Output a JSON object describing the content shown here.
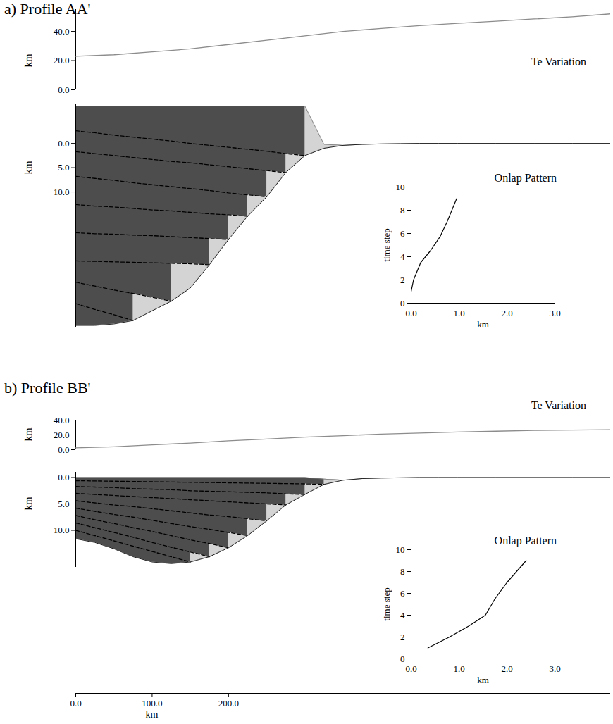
{
  "chart_data": [
    {
      "title": "a) Profile AA'",
      "te": {
        "type": "line",
        "title": "Te Variation",
        "ylabel": "km",
        "xlim": [
          0,
          700
        ],
        "ylim": [
          0,
          55
        ],
        "yticks": [
          {
            "value": 0,
            "label": "0.0"
          },
          {
            "value": 20,
            "label": "20.0"
          },
          {
            "value": 40,
            "label": "40.0"
          }
        ],
        "tick_labels": "y",
        "color": "#8c8c8c",
        "x": [
          0,
          50,
          100,
          150,
          200,
          250,
          300,
          350,
          400,
          450,
          500,
          550,
          600,
          650,
          700
        ],
        "values": [
          23,
          24,
          26,
          28,
          31,
          34,
          37,
          40,
          42,
          44,
          45.5,
          47,
          48.5,
          50,
          52
        ]
      },
      "section": {
        "type": "area",
        "ylabel": "km",
        "xlim": [
          0,
          700
        ],
        "ylim": [
          38,
          -8
        ],
        "yticks": [
          {
            "value": 0,
            "label": "0.0"
          },
          {
            "value": 5,
            "label": "5.0"
          },
          {
            "value": 10,
            "label": "10.0"
          }
        ],
        "tick_labels": "y",
        "color": "#4d4d4d",
        "x": [
          0,
          25,
          50,
          75,
          100,
          125,
          150,
          175,
          200,
          225,
          250,
          275,
          300,
          325,
          350,
          375,
          400,
          425,
          450,
          475,
          500,
          550,
          600,
          650,
          700
        ],
        "basement": [
          37.5,
          37.5,
          37.2,
          36.5,
          34.5,
          32.5,
          29.8,
          25,
          19.8,
          15,
          11,
          6,
          2.5,
          1,
          0.4,
          0.2,
          0.1,
          0.05,
          0,
          0,
          0,
          0,
          0,
          0,
          0
        ],
        "surface": [
          -7.7,
          -7.7,
          -7.7,
          -7.7,
          -7.7,
          -7.7,
          -7.7,
          -7.7,
          -7.7,
          -7.7,
          -7.7,
          -7.7,
          -7.7,
          0.2,
          0.4,
          0.2,
          0.1,
          0.05,
          0,
          0,
          0,
          0,
          0,
          0,
          0
        ],
        "horizons": {
          "line_style": "dashed",
          "color": "#000000",
          "depths": [
            [
              33,
              34.2,
              35.3,
              36.5,
              34.5,
              32.5,
              29.8,
              25,
              19.8,
              15,
              11,
              6,
              2.5,
              1,
              0.4,
              0.2,
              0.1,
              0.05,
              0,
              0,
              0,
              0,
              0,
              0,
              0
            ],
            [
              28.6,
              29.4,
              30.2,
              30.9,
              31.7,
              32.5,
              29.8,
              25,
              19.8,
              15,
              11,
              6,
              2.5,
              1,
              0.4,
              0.2,
              0.1,
              0.05,
              0,
              0,
              0,
              0,
              0,
              0,
              0
            ],
            [
              24.2,
              24.3,
              24.4,
              24.5,
              24.6,
              24.7,
              24.8,
              25,
              19.8,
              15,
              11,
              6,
              2.5,
              1,
              0.4,
              0.2,
              0.1,
              0.05,
              0,
              0,
              0,
              0,
              0,
              0,
              0
            ],
            [
              18.4,
              18.6,
              18.7,
              18.9,
              19,
              19.2,
              19.4,
              19.6,
              19.8,
              15,
              11,
              6,
              2.5,
              1,
              0.4,
              0.2,
              0.1,
              0.05,
              0,
              0,
              0,
              0,
              0,
              0,
              0
            ],
            [
              12.6,
              12.9,
              13.1,
              13.4,
              13.7,
              13.9,
              14.2,
              14.5,
              14.7,
              15,
              11,
              6,
              2.5,
              1,
              0.4,
              0.2,
              0.1,
              0.05,
              0,
              0,
              0,
              0,
              0,
              0,
              0
            ],
            [
              6.8,
              7.2,
              7.6,
              8.1,
              8.5,
              8.9,
              9.3,
              9.7,
              10.2,
              10.6,
              11,
              6,
              2.5,
              1,
              0.4,
              0.2,
              0.1,
              0.05,
              0,
              0,
              0,
              0,
              0,
              0,
              0
            ],
            [
              1.7,
              2.1,
              2.5,
              2.9,
              3.3,
              3.7,
              4,
              4.4,
              4.8,
              5.2,
              5.6,
              6,
              2.5,
              1,
              0.4,
              0.2,
              0.1,
              0.05,
              0,
              0,
              0,
              0,
              0,
              0,
              0
            ],
            [
              -2.6,
              -2.2,
              -1.7,
              -1.3,
              -0.9,
              -0.5,
              0,
              0.4,
              0.8,
              1.2,
              1.6,
              2.1,
              2.5,
              1,
              0.4,
              0.2,
              0.1,
              0.05,
              0,
              0,
              0,
              0,
              0,
              0,
              0
            ]
          ]
        }
      },
      "onlap": {
        "type": "line",
        "title": "Onlap Pattern",
        "xlabel": "km",
        "ylabel": "time step",
        "xlim": [
          0,
          3
        ],
        "ylim": [
          0,
          10
        ],
        "xticks": [
          {
            "value": 0,
            "label": "0.0"
          },
          {
            "value": 1,
            "label": "1.0"
          },
          {
            "value": 2,
            "label": "2.0"
          },
          {
            "value": 3,
            "label": "3.0"
          }
        ],
        "yticks": [
          0,
          2,
          4,
          6,
          8,
          10
        ],
        "color": "#000000",
        "x": [
          0,
          0.05,
          0.1,
          0.2,
          0.4,
          0.6,
          0.75,
          0.95
        ],
        "values": [
          1,
          2,
          2.5,
          3.5,
          4.5,
          5.7,
          7,
          9
        ]
      }
    },
    {
      "title": "b) Profile BB'",
      "te": {
        "type": "line",
        "title": "Te Variation",
        "ylabel": "km",
        "xlim": [
          0,
          700
        ],
        "ylim": [
          0,
          40
        ],
        "yticks": [
          {
            "value": 0,
            "label": "0.0"
          },
          {
            "value": 20,
            "label": "20.0"
          },
          {
            "value": 40,
            "label": "40.0"
          }
        ],
        "tick_labels": "y",
        "color": "#8c8c8c",
        "x": [
          0,
          50,
          100,
          150,
          200,
          250,
          300,
          350,
          400,
          450,
          500,
          550,
          600,
          650,
          700
        ],
        "values": [
          2.5,
          4,
          6.5,
          9,
          12,
          14.5,
          17,
          19,
          21,
          22.5,
          24,
          25,
          26,
          26.5,
          27
        ]
      },
      "section": {
        "type": "area",
        "ylabel": "km",
        "xlabel": "km",
        "xlim": [
          0,
          700
        ],
        "ylim": [
          17,
          -1
        ],
        "xticks": [
          {
            "value": 0,
            "label": "0.0"
          },
          {
            "value": 100,
            "label": "100.0"
          },
          {
            "value": 200,
            "label": "200.0"
          }
        ],
        "yticks": [
          {
            "value": 0,
            "label": "0.0"
          },
          {
            "value": 5,
            "label": "5.0"
          },
          {
            "value": 10,
            "label": "10.0"
          }
        ],
        "tick_labels": true,
        "color": "#4d4d4d",
        "x": [
          0,
          25,
          50,
          75,
          100,
          125,
          150,
          175,
          200,
          225,
          250,
          275,
          300,
          325,
          350,
          375,
          400,
          425,
          450,
          475,
          500,
          550,
          600,
          650,
          700
        ],
        "basement": [
          11.6,
          12.3,
          13.5,
          15,
          16,
          16.3,
          16,
          15,
          13.3,
          11,
          8.2,
          5.2,
          3.2,
          1.3,
          0.5,
          0.2,
          0.1,
          0.05,
          0,
          0,
          0,
          0,
          0,
          0,
          0
        ],
        "surface": [
          0,
          0,
          0,
          0,
          0,
          0,
          0,
          0,
          0,
          0,
          0,
          0,
          0,
          0.3,
          0.5,
          0.2,
          0.1,
          0.05,
          0,
          0,
          0,
          0,
          0,
          0,
          0
        ],
        "horizons": {
          "line_style": "dashed",
          "color": "#000000",
          "depths": [
            [
              10,
              11,
              12,
              13,
              14,
              15,
              16,
              15,
              13.3,
              11,
              8.2,
              5.2,
              3.2,
              1.3,
              0.5,
              0.2,
              0.1,
              0.05,
              0,
              0,
              0,
              0,
              0,
              0,
              0
            ],
            [
              8.6,
              9.5,
              10.4,
              11.3,
              12.3,
              13.2,
              14.1,
              15,
              13.3,
              11,
              8.2,
              5.2,
              3.2,
              1.3,
              0.5,
              0.2,
              0.1,
              0.05,
              0,
              0,
              0,
              0,
              0,
              0,
              0
            ],
            [
              7.2,
              8,
              8.7,
              9.5,
              10.2,
              11,
              11.8,
              12.5,
              13.3,
              11,
              8.2,
              5.2,
              3.2,
              1.3,
              0.5,
              0.2,
              0.1,
              0.05,
              0,
              0,
              0,
              0,
              0,
              0,
              0
            ],
            [
              5.8,
              6.4,
              7,
              7.5,
              8.1,
              8.7,
              9.3,
              9.8,
              10.4,
              11,
              8.2,
              5.2,
              3.2,
              1.3,
              0.5,
              0.2,
              0.1,
              0.05,
              0,
              0,
              0,
              0,
              0,
              0,
              0
            ],
            [
              4.4,
              4.8,
              5.2,
              5.5,
              5.9,
              6.3,
              6.7,
              7.1,
              7.4,
              7.8,
              8.2,
              5.2,
              3.2,
              1.3,
              0.5,
              0.2,
              0.1,
              0.05,
              0,
              0,
              0,
              0,
              0,
              0,
              0
            ],
            [
              3,
              3.2,
              3.4,
              3.6,
              3.8,
              4,
              4.2,
              4.4,
              4.6,
              4.8,
              5,
              5.2,
              3.2,
              1.3,
              0.5,
              0.2,
              0.1,
              0.05,
              0,
              0,
              0,
              0,
              0,
              0,
              0
            ],
            [
              1.7,
              1.8,
              1.9,
              2.1,
              2.2,
              2.3,
              2.5,
              2.6,
              2.7,
              2.8,
              2.9,
              3.1,
              3.2,
              1.3,
              0.5,
              0.2,
              0.1,
              0.05,
              0,
              0,
              0,
              0,
              0,
              0,
              0
            ],
            [
              0.6,
              0.65,
              0.7,
              0.75,
              0.8,
              0.85,
              0.9,
              0.95,
              1,
              1.05,
              1.1,
              1.15,
              1.2,
              1.3,
              0.5,
              0.2,
              0.1,
              0.05,
              0,
              0,
              0,
              0,
              0,
              0,
              0
            ]
          ]
        }
      },
      "onlap": {
        "type": "line",
        "title": "Onlap Pattern",
        "xlabel": "km",
        "ylabel": "time step",
        "xlim": [
          0,
          3
        ],
        "ylim": [
          0,
          10
        ],
        "xticks": [
          {
            "value": 0,
            "label": "0.0"
          },
          {
            "value": 1,
            "label": "1.0"
          },
          {
            "value": 2,
            "label": "2.0"
          },
          {
            "value": 3,
            "label": "3.0"
          }
        ],
        "yticks": [
          0,
          2,
          4,
          6,
          8,
          10
        ],
        "color": "#000000",
        "x": [
          0.35,
          0.8,
          1.2,
          1.55,
          1.75,
          2,
          2.4
        ],
        "values": [
          1,
          2,
          3,
          4,
          5.5,
          7,
          9
        ]
      }
    }
  ]
}
